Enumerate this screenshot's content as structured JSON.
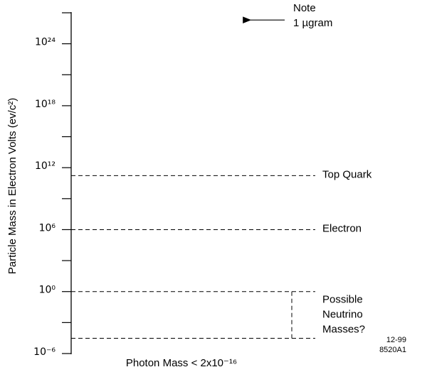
{
  "chart_data": {
    "type": "scale",
    "ylabel": "Particle Mass in Electron Volts  (ev/c²)",
    "xlabel": "Photon Mass < 2x10⁻¹⁶",
    "log_y": true,
    "color": "#000000",
    "ylim": [
      1e-06,
      1e+27
    ],
    "yticks": [
      {
        "value": 1e-06,
        "label": "10⁻⁶"
      },
      {
        "value": 1,
        "label": "10⁰"
      },
      {
        "value": 1000000.0,
        "label": "10⁶"
      },
      {
        "value": 1000000000000.0,
        "label": "10¹²"
      },
      {
        "value": 1e+18,
        "label": "10¹⁸"
      },
      {
        "value": 1e+24,
        "label": "10²⁴"
      }
    ],
    "minor_yticks": [
      0.001,
      1000.0,
      1000000000.0,
      1000000000000000.0,
      1e+21,
      1e+27
    ],
    "markers": [
      {
        "label": "Top Quark",
        "value": 170000000000.0
      },
      {
        "label": "Electron",
        "value": 1000000.0
      }
    ],
    "range": {
      "label": [
        "Possible",
        "Neutrino",
        "Masses?"
      ],
      "values": [
        1,
        3e-05
      ]
    },
    "annotation": {
      "label": [
        "Note",
        "1 µgram"
      ],
      "value": 2e+26
    },
    "footnote": [
      "12-99",
      "8520A1"
    ]
  }
}
